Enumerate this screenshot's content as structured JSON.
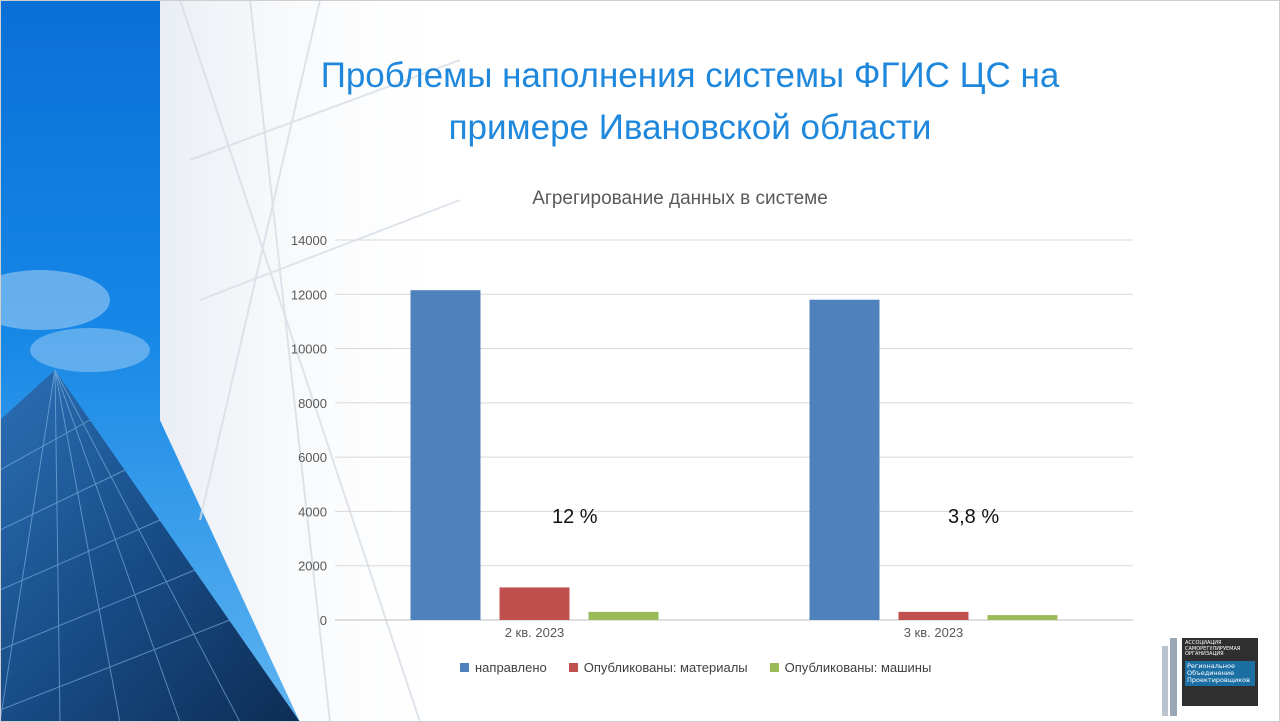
{
  "slide": {
    "title_line1": "Проблемы наполнения системы ФГИС ЦС на",
    "title_line2": "примере Ивановской области"
  },
  "logo": {
    "line1": "АССОЦИАЦИЯ",
    "line2": "САМОРЕГУЛИРУЕМАЯ",
    "line3": "ОРГАНИЗАЦИЯ",
    "line4": "Региональное",
    "line5": "Объединение",
    "line6": "Проектировщиков"
  },
  "chart_data": {
    "type": "bar",
    "title": "Агрегирование данных в системе",
    "categories": [
      "2 кв. 2023",
      "3 кв. 2023"
    ],
    "series": [
      {
        "name": "направлено",
        "values": [
          12150,
          11800
        ],
        "color": "#4f81bd"
      },
      {
        "name": "Опубликованы: материалы",
        "values": [
          1200,
          300
        ],
        "color": "#c0504d"
      },
      {
        "name": "Опубликованы: машины",
        "values": [
          300,
          180
        ],
        "color": "#9bbb59"
      }
    ],
    "ylim": [
      0,
      14000
    ],
    "yticks": [
      "0",
      "2000",
      "4000",
      "6000",
      "8000",
      "10000",
      "12000",
      "14000"
    ],
    "annotations": [
      "12 %",
      "3,8 %"
    ],
    "grid": true,
    "legend": "bottom"
  }
}
